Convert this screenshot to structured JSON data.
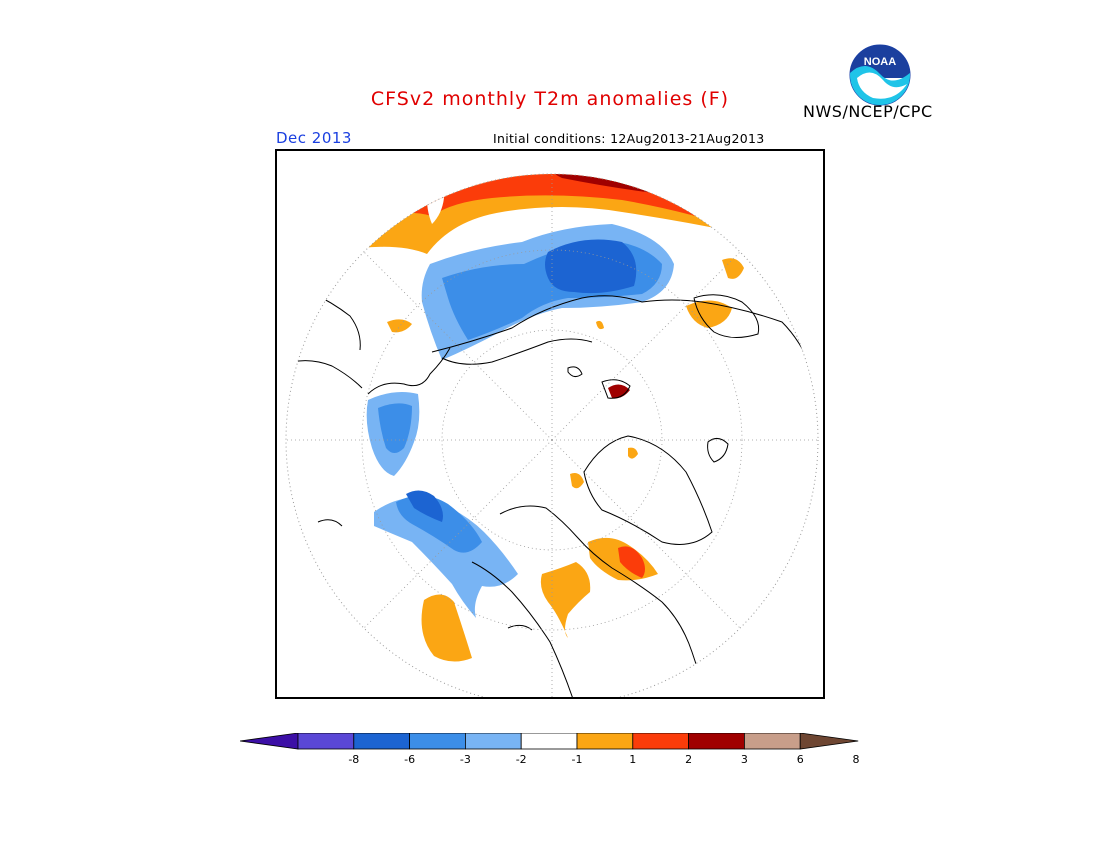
{
  "header": {
    "title": "CFSv2 monthly T2m anomalies (F)",
    "agency": "NWS/NCEP/CPC",
    "period": "Dec 2013",
    "ic_prefix": "Initial conditions:",
    "ic_value": "12Aug2013-21Aug2013",
    "logo_text": "NOAA"
  },
  "legend": {
    "ticks": [
      "-8",
      "-6",
      "-3",
      "-2",
      "-1",
      "1",
      "2",
      "3",
      "6",
      "8"
    ],
    "colors": [
      "#3c0fa6",
      "#5a47d6",
      "#1c64d2",
      "#3c8ee8",
      "#78b4f4",
      "#ffffff",
      "#fba614",
      "#fb3c0a",
      "#a00000",
      "#c89e8a",
      "#6e4632"
    ]
  },
  "map": {
    "projection": "north-polar-stereographic",
    "anomaly_colors": {
      "cold_1": "#78b4f4",
      "cold_2": "#3c8ee8",
      "cold_3": "#1c64d2",
      "warm_1": "#fba614",
      "warm_2": "#fb3c0a",
      "warm_3": "#a00000"
    }
  }
}
